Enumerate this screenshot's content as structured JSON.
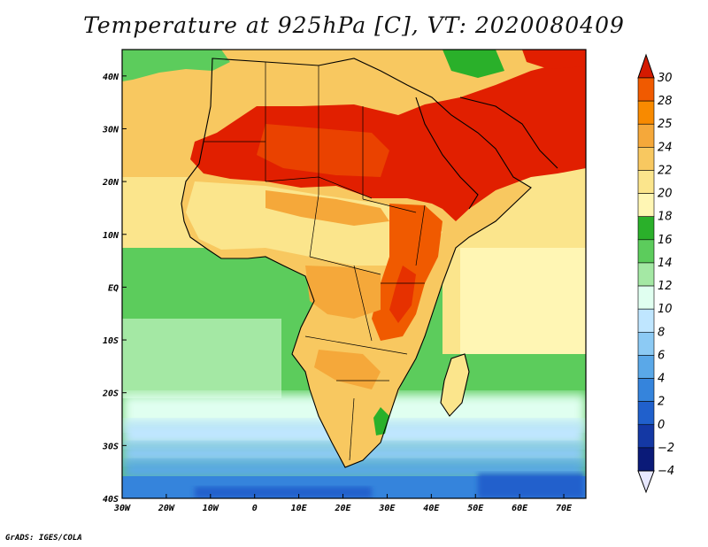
{
  "title": "Temperature at 925hPa [C], VT: 2020080409",
  "footer": "GrADS: IGES/COLA",
  "map": {
    "lon_range": [
      -30,
      75
    ],
    "lat_range": [
      -40,
      45
    ],
    "x_ticks": [
      {
        "lon": -30,
        "label": "30W"
      },
      {
        "lon": -20,
        "label": "20W"
      },
      {
        "lon": -10,
        "label": "10W"
      },
      {
        "lon": 0,
        "label": "0"
      },
      {
        "lon": 10,
        "label": "10E"
      },
      {
        "lon": 20,
        "label": "20E"
      },
      {
        "lon": 30,
        "label": "30E"
      },
      {
        "lon": 40,
        "label": "40E"
      },
      {
        "lon": 50,
        "label": "50E"
      },
      {
        "lon": 60,
        "label": "60E"
      },
      {
        "lon": 70,
        "label": "70E"
      }
    ],
    "y_ticks": [
      {
        "lat": 40,
        "label": "40N"
      },
      {
        "lat": 30,
        "label": "30N"
      },
      {
        "lat": 20,
        "label": "20N"
      },
      {
        "lat": 10,
        "label": "10N"
      },
      {
        "lat": 0,
        "label": "EQ"
      },
      {
        "lat": -10,
        "label": "10S"
      },
      {
        "lat": -20,
        "label": "20S"
      },
      {
        "lat": -30,
        "label": "30S"
      },
      {
        "lat": -40,
        "label": "40S"
      }
    ]
  },
  "colorbar": {
    "labels": [
      "30",
      "28",
      "25",
      "24",
      "22",
      "20",
      "18",
      "16",
      "14",
      "12",
      "10",
      "8",
      "6",
      "4",
      "2",
      "0",
      "-2",
      "-4"
    ],
    "colors_top_to_bottom": [
      "#e11f00",
      "#f05a00",
      "#f88a00",
      "#f5a83a",
      "#f8c860",
      "#fbe58c",
      "#fff6b4",
      "#2ab02a",
      "#5ccc5c",
      "#a4e8a4",
      "#e0fff0",
      "#bfe6ff",
      "#8ccaf4",
      "#5aa8e8",
      "#3584dc",
      "#2060cc",
      "#1438a4",
      "#0a1a78"
    ],
    "top_cap_color": "#d41a00",
    "bottom_cap_color": "#e8e8ff"
  }
}
